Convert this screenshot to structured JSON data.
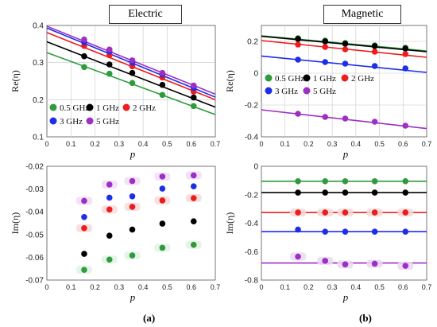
{
  "figure": {
    "panel_labels": [
      "(a)",
      "(b)"
    ],
    "column_titles": [
      "Electric",
      "Magnetic"
    ]
  },
  "colors": {
    "0.5 GHz": "#2e9b3c",
    "1 GHz": "#000000",
    "2 GHz": "#ee1c1c",
    "3 GHz": "#1c2ee8",
    "5 GHz": "#9d2fc4",
    "grid": "#c8c8c8"
  },
  "chart_data": [
    {
      "id": "electric-re",
      "type": "scatter",
      "title": "Electric",
      "xlabel": "p",
      "ylabel": "Re(η)",
      "xlim": [
        0,
        0.7
      ],
      "ylim": [
        0.1,
        0.4
      ],
      "xticks": [
        0,
        0.1,
        0.2,
        0.3,
        0.4,
        0.5,
        0.6,
        0.7
      ],
      "yticks": [
        0.1,
        0.2,
        0.3,
        0.4
      ],
      "grid": true,
      "legend": "bottom-left",
      "x": [
        0.155,
        0.26,
        0.355,
        0.48,
        0.61
      ],
      "series": [
        {
          "name": "0.5 GHz",
          "values": [
            0.288,
            0.27,
            0.245,
            0.213,
            0.183
          ],
          "fit": [
            [
              0,
              0.327
            ],
            [
              0.7,
              0.16
            ]
          ]
        },
        {
          "name": "1 GHz",
          "values": [
            0.317,
            0.295,
            0.272,
            0.24,
            0.206
          ],
          "fit": [
            [
              0,
              0.356
            ],
            [
              0.7,
              0.18
            ]
          ]
        },
        {
          "name": "2 GHz",
          "values": [
            0.345,
            0.32,
            0.29,
            0.26,
            0.222
          ],
          "fit": [
            [
              0,
              0.381
            ],
            [
              0.7,
              0.2
            ]
          ]
        },
        {
          "name": "3 GHz",
          "values": [
            0.355,
            0.33,
            0.3,
            0.268,
            0.232
          ],
          "fit": [
            [
              0,
              0.393
            ],
            [
              0.7,
              0.207
            ]
          ]
        },
        {
          "name": "5 GHz",
          "values": [
            0.362,
            0.335,
            0.306,
            0.272,
            0.238
          ],
          "fit": [
            [
              0,
              0.398
            ],
            [
              0.7,
              0.215
            ]
          ]
        }
      ]
    },
    {
      "id": "electric-im",
      "type": "scatter",
      "xlabel": "p",
      "ylabel": "Im(η)",
      "xlim": [
        0,
        0.7
      ],
      "ylim": [
        -0.07,
        -0.02
      ],
      "xticks": [
        0,
        0.1,
        0.2,
        0.3,
        0.4,
        0.5,
        0.6,
        0.7
      ],
      "yticks": [
        -0.07,
        -0.06,
        -0.05,
        -0.04,
        -0.03,
        -0.02
      ],
      "grid": false,
      "x": [
        0.155,
        0.26,
        0.355,
        0.48,
        0.61
      ],
      "series": [
        {
          "name": "0.5 GHz",
          "values": [
            -0.0655,
            -0.061,
            -0.0592,
            -0.0558,
            -0.0545
          ]
        },
        {
          "name": "1 GHz",
          "values": [
            -0.0585,
            -0.0505,
            -0.0478,
            -0.0452,
            -0.0442
          ]
        },
        {
          "name": "2 GHz",
          "values": [
            -0.0472,
            -0.039,
            -0.0378,
            -0.035,
            -0.034
          ]
        },
        {
          "name": "3 GHz",
          "values": [
            -0.0423,
            -0.0338,
            -0.0332,
            -0.0298,
            -0.0288
          ]
        },
        {
          "name": "5 GHz",
          "values": [
            -0.0352,
            -0.028,
            -0.0265,
            -0.0245,
            -0.024
          ]
        }
      ]
    },
    {
      "id": "magnetic-re",
      "type": "scatter",
      "title": "Magnetic",
      "xlabel": "p",
      "ylabel": "Re(η)",
      "xlim": [
        0,
        0.7
      ],
      "ylim": [
        -0.4,
        0.3
      ],
      "xticks": [
        0,
        0.1,
        0.2,
        0.3,
        0.4,
        0.5,
        0.6,
        0.7
      ],
      "yticks": [
        -0.4,
        -0.2,
        0,
        0.2
      ],
      "grid": true,
      "legend": "center-right",
      "x": [
        0.155,
        0.27,
        0.355,
        0.48,
        0.61
      ],
      "series": [
        {
          "name": "0.5 GHz",
          "values": [
            0.22,
            0.205,
            0.19,
            0.175,
            0.16
          ],
          "fit": [
            [
              0,
              0.235
            ],
            [
              0.7,
              0.14
            ]
          ]
        },
        {
          "name": "1 GHz",
          "values": [
            0.215,
            0.2,
            0.185,
            0.17,
            0.155
          ],
          "fit": [
            [
              0,
              0.232
            ],
            [
              0.7,
              0.135
            ]
          ]
        },
        {
          "name": "2 GHz",
          "values": [
            0.18,
            0.165,
            0.15,
            0.135,
            0.12
          ],
          "fit": [
            [
              0,
              0.205
            ],
            [
              0.7,
              0.1
            ]
          ]
        },
        {
          "name": "3 GHz",
          "values": [
            0.085,
            0.07,
            0.06,
            0.045,
            0.03
          ],
          "fit": [
            [
              0,
              0.108
            ],
            [
              0.7,
              0.005
            ]
          ]
        },
        {
          "name": "5 GHz",
          "values": [
            -0.255,
            -0.275,
            -0.285,
            -0.305,
            -0.33
          ],
          "fit": [
            [
              0,
              -0.23
            ],
            [
              0.7,
              -0.348
            ]
          ]
        }
      ]
    },
    {
      "id": "magnetic-im",
      "type": "scatter",
      "xlabel": "p",
      "ylabel": "Im(η)",
      "xlim": [
        0,
        0.7
      ],
      "ylim": [
        -0.8,
        0
      ],
      "xticks": [
        0,
        0.1,
        0.2,
        0.3,
        0.4,
        0.5,
        0.6,
        0.7
      ],
      "yticks": [
        -0.8,
        -0.6,
        -0.4,
        -0.2,
        0
      ],
      "grid": false,
      "x": [
        0.155,
        0.27,
        0.355,
        0.48,
        0.61
      ],
      "series": [
        {
          "name": "0.5 GHz",
          "values": [
            -0.105,
            -0.105,
            -0.105,
            -0.105,
            -0.105
          ],
          "fit": [
            [
              0,
              -0.105
            ],
            [
              0.7,
              -0.105
            ]
          ]
        },
        {
          "name": "1 GHz",
          "values": [
            -0.185,
            -0.185,
            -0.185,
            -0.185,
            -0.185
          ],
          "fit": [
            [
              0,
              -0.185
            ],
            [
              0.7,
              -0.185
            ]
          ]
        },
        {
          "name": "2 GHz",
          "values": [
            -0.325,
            -0.325,
            -0.325,
            -0.325,
            -0.325
          ],
          "fit": [
            [
              0,
              -0.325
            ],
            [
              0.7,
              -0.325
            ]
          ]
        },
        {
          "name": "3 GHz",
          "values": [
            -0.445,
            -0.46,
            -0.46,
            -0.46,
            -0.46
          ],
          "fit": [
            [
              0,
              -0.46
            ],
            [
              0.7,
              -0.46
            ]
          ]
        },
        {
          "name": "5 GHz",
          "values": [
            -0.635,
            -0.665,
            -0.69,
            -0.685,
            -0.7
          ],
          "fit": [
            [
              0,
              -0.68
            ],
            [
              0.7,
              -0.68
            ]
          ]
        }
      ]
    }
  ]
}
